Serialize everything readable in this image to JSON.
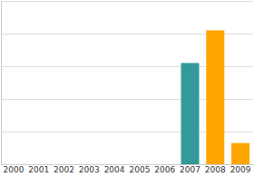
{
  "chart_data": {
    "type": "bar",
    "categories": [
      "2000",
      "2001",
      "2002",
      "2003",
      "2004",
      "2005",
      "2006",
      "2007",
      "2008",
      "2009"
    ],
    "values": [
      0,
      0,
      0,
      0,
      0,
      0,
      0,
      3.1,
      4.1,
      0.65
    ],
    "colors": [
      "#ffa500",
      "#ffa500",
      "#ffa500",
      "#ffa500",
      "#ffa500",
      "#ffa500",
      "#ffa500",
      "#339999",
      "#ffa500",
      "#ffa500"
    ],
    "ylim": [
      0,
      5
    ],
    "yticks": [
      0,
      1,
      2,
      3,
      4,
      5
    ],
    "grid": true,
    "tick_labels": "x"
  }
}
